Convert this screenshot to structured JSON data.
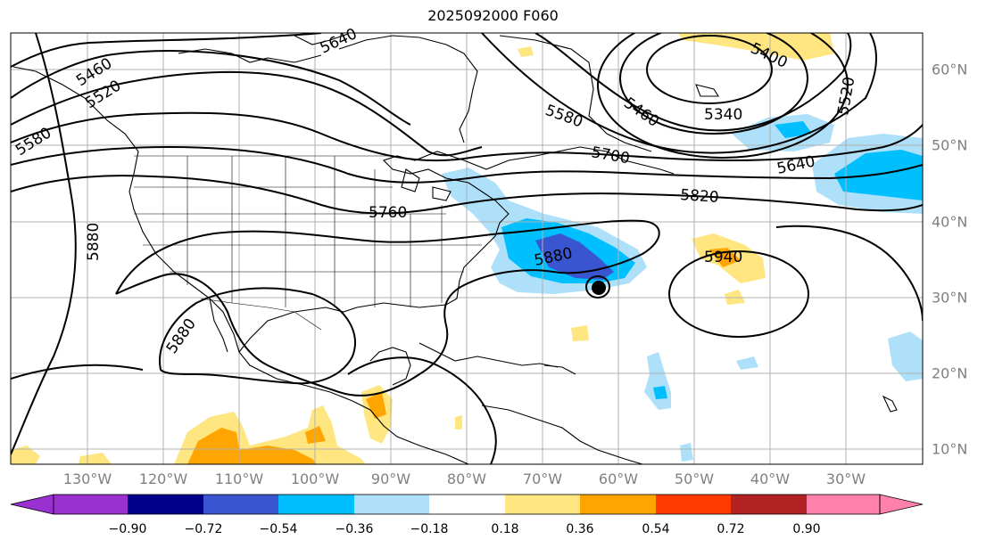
{
  "title": "2025092000 F060",
  "longitudes": [
    "130°W",
    "120°W",
    "110°W",
    "100°W",
    "90°W",
    "80°W",
    "70°W",
    "60°W",
    "50°W",
    "40°W",
    "30°W"
  ],
  "latitudes": [
    "60°N",
    "50°N",
    "40°N",
    "30°N",
    "20°N",
    "10°N"
  ],
  "contour_labels": [
    "5400",
    "5460",
    "5520",
    "5580",
    "5640",
    "5700",
    "5760",
    "5820",
    "5880",
    "5940",
    "5340",
    "5460",
    "5520",
    "5580",
    "5640",
    "5880",
    "5880"
  ],
  "colorbar": {
    "ticks": [
      "−0.90",
      "−0.72",
      "−0.54",
      "−0.36",
      "−0.18",
      "0.18",
      "0.36",
      "0.54",
      "0.72",
      "0.90"
    ],
    "colors": [
      "#9b30d0",
      "#00008b",
      "#3a55d0",
      "#00bfff",
      "#aee0fa",
      "#ffffff",
      "#ffe680",
      "#ffa500",
      "#ff3a00",
      "#b22222",
      "#ff80aa"
    ]
  },
  "fill_colors": {
    "light_blue": "#aee0fa",
    "blue": "#00bfff",
    "dark_blue": "#3a55d0",
    "yellow": "#ffe680",
    "orange": "#ffa500"
  }
}
